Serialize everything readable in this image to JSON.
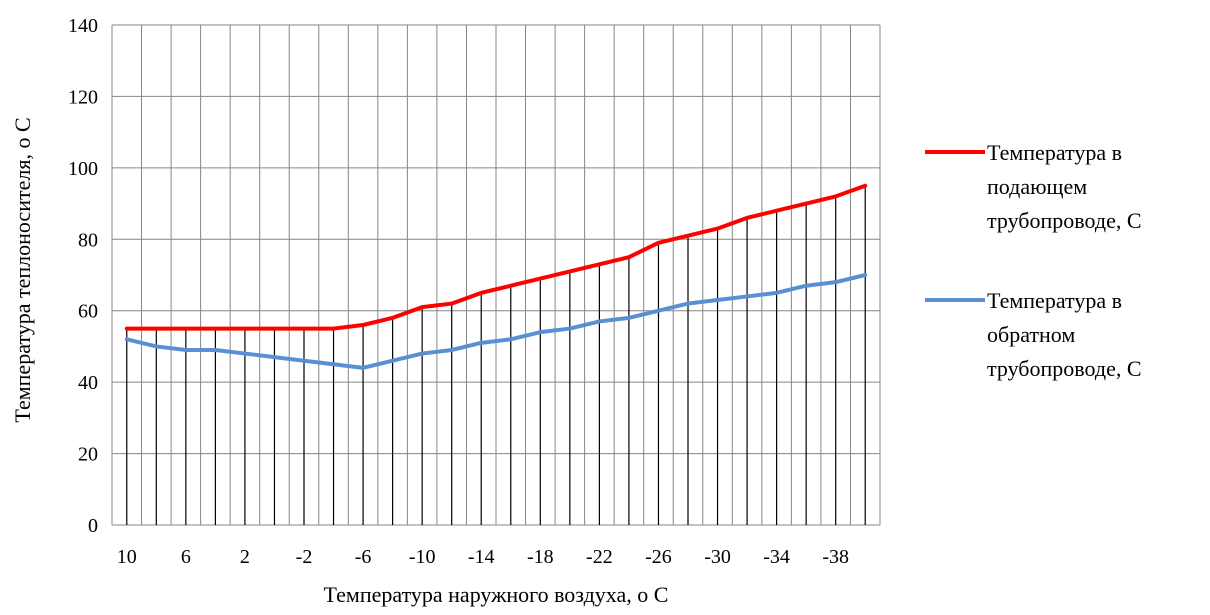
{
  "chart_data": {
    "type": "line",
    "xlabel": "Температура наружного воздуха, о С",
    "ylabel": "Температура теплоносителя, о С",
    "ylim": [
      0,
      140
    ],
    "y_ticks": [
      0,
      20,
      40,
      60,
      80,
      100,
      120,
      140
    ],
    "grid": true,
    "legend_position": "right",
    "drop_lines": true,
    "x": [
      10,
      8,
      6,
      4,
      2,
      0,
      -2,
      -4,
      -6,
      -8,
      -10,
      -12,
      -14,
      -16,
      -18,
      -20,
      -22,
      -24,
      -26,
      -28,
      -30,
      -32,
      -34,
      -36,
      -38,
      -40
    ],
    "x_tick_labels": [
      "10",
      "6",
      "2",
      "-2",
      "-6",
      "-10",
      "-14",
      "-18",
      "-22",
      "-26",
      "-30",
      "-34",
      "-38"
    ],
    "series": [
      {
        "name": "Температура в подающем трубопроводе, С",
        "legend_lines": [
          "Температура в",
          "подающем",
          "трубопроводе, С"
        ],
        "color": "#ff0000",
        "values": [
          55,
          55,
          55,
          55,
          55,
          55,
          55,
          55,
          56,
          58,
          61,
          62,
          65,
          67,
          69,
          71,
          73,
          75,
          79,
          81,
          83,
          86,
          88,
          90,
          92,
          95
        ]
      },
      {
        "name": "Температура в обратном трубопроводе, С",
        "legend_lines": [
          "Температура в",
          "обратном",
          "трубопроводе, С"
        ],
        "color": "#5b8fd4",
        "values": [
          52,
          50,
          49,
          49,
          48,
          47,
          46,
          45,
          44,
          46,
          48,
          49,
          51,
          52,
          54,
          55,
          57,
          58,
          60,
          62,
          63,
          64,
          65,
          67,
          68,
          70
        ]
      }
    ]
  }
}
